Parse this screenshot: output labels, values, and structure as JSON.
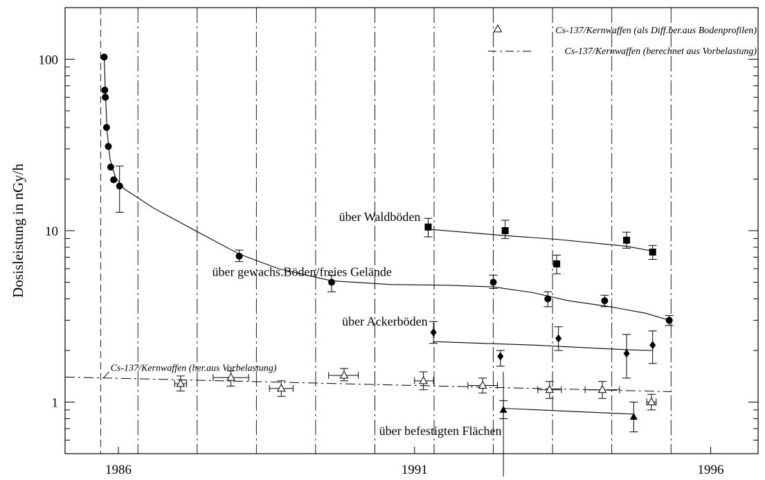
{
  "chart_data": {
    "type": "scatter",
    "title": "",
    "xlabel": "",
    "ylabel": "Dosisleistung in nGy/h",
    "yscale": "log",
    "xlim": [
      1985.1,
      1996.8
    ],
    "ylim": [
      0.5,
      200
    ],
    "x_ticks": [
      {
        "value": 1986,
        "label": "1986"
      },
      {
        "value": 1991,
        "label": "1991"
      },
      {
        "value": 1996,
        "label": "1996"
      }
    ],
    "y_ticks": [
      {
        "value": 1,
        "label": "1"
      },
      {
        "value": 10,
        "label": "10"
      },
      {
        "value": 100,
        "label": "100"
      }
    ],
    "y_minor_ticks": [
      0.6,
      0.7,
      0.8,
      0.9,
      2,
      3,
      4,
      5,
      6,
      7,
      8,
      9,
      20,
      30,
      40,
      50,
      60,
      70,
      80,
      90,
      200
    ],
    "year_boundaries": [
      1986.33,
      1987.33,
      1988.33,
      1989.33,
      1990.33,
      1991.33,
      1992.33,
      1993.33,
      1994.33,
      1995.33
    ],
    "chernobyl_marker_x": 1985.7,
    "grid": false,
    "legend": {
      "placement": "top-right",
      "entries": [
        {
          "label": "Cs-137/Kernwaffen (als Diff.ber.aus Bodenprofilen)",
          "marker": "triangle-open"
        },
        {
          "label": "Cs-137/Kernwaffen (berechnet aus Vorbelastung)",
          "marker": "dash-dot-line"
        }
      ]
    },
    "reference_line": {
      "label": "Cs-137/Kernwaffen (ber.aus Vorbelastung)",
      "style": "dash-dot",
      "x": [
        1985.1,
        1995.33
      ],
      "y": [
        1.4,
        1.15
      ]
    },
    "series": [
      {
        "name": "über gewachs.Böden/freies Gelände",
        "marker": "circle",
        "points": [
          {
            "x": 1985.76,
            "y": 103
          },
          {
            "x": 1985.77,
            "y": 66
          },
          {
            "x": 1985.78,
            "y": 60
          },
          {
            "x": 1985.8,
            "y": 40
          },
          {
            "x": 1985.83,
            "y": 31
          },
          {
            "x": 1985.87,
            "y": 23.5
          },
          {
            "x": 1985.92,
            "y": 19.8
          },
          {
            "x": 1986.02,
            "y": 18.2,
            "err": [
              12.8,
              23.8
            ]
          },
          {
            "x": 1988.04,
            "y": 7.1,
            "err": [
              6.6,
              7.7
            ]
          },
          {
            "x": 1989.6,
            "y": 5.0,
            "err": [
              4.4,
              5.5
            ]
          },
          {
            "x": 1992.33,
            "y": 5.0,
            "err": [
              4.6,
              5.5
            ]
          },
          {
            "x": 1993.25,
            "y": 4.0,
            "err": [
              3.6,
              4.4
            ]
          },
          {
            "x": 1994.21,
            "y": 3.9,
            "err": [
              3.6,
              4.2
            ]
          },
          {
            "x": 1995.3,
            "y": 3.0,
            "err": [
              2.8,
              3.2
            ]
          }
        ],
        "fit": [
          [
            1985.76,
            103
          ],
          [
            1985.78,
            64
          ],
          [
            1985.81,
            38
          ],
          [
            1985.86,
            26
          ],
          [
            1985.95,
            20.5
          ],
          [
            1986.1,
            17.5
          ],
          [
            1986.6,
            13.5
          ],
          [
            1987.3,
            10.0
          ],
          [
            1988.04,
            7.3
          ],
          [
            1988.7,
            6.0
          ],
          [
            1989.6,
            5.1
          ],
          [
            1990.6,
            4.85
          ],
          [
            1991.6,
            4.8
          ],
          [
            1992.33,
            4.7
          ],
          [
            1993.0,
            4.35
          ],
          [
            1993.6,
            3.9
          ],
          [
            1994.3,
            3.6
          ],
          [
            1994.9,
            3.3
          ],
          [
            1995.3,
            3.0
          ]
        ]
      },
      {
        "name": "über Waldböden",
        "marker": "square",
        "points": [
          {
            "x": 1991.23,
            "y": 10.5,
            "err": [
              9.2,
              11.8
            ]
          },
          {
            "x": 1992.53,
            "y": 10.0,
            "err": [
              9.0,
              11.5
            ]
          },
          {
            "x": 1993.4,
            "y": 6.4,
            "err": [
              5.6,
              7.2
            ]
          },
          {
            "x": 1994.58,
            "y": 8.8,
            "err": [
              7.9,
              9.8
            ]
          },
          {
            "x": 1995.02,
            "y": 7.5,
            "err": [
              6.8,
              8.2
            ]
          }
        ],
        "fit": [
          [
            1991.23,
            10.2
          ],
          [
            1992.53,
            9.35
          ],
          [
            1993.4,
            8.9
          ],
          [
            1994.58,
            8.1
          ],
          [
            1995.02,
            7.6
          ]
        ]
      },
      {
        "name": "über Ackerböden",
        "marker": "diamond",
        "points": [
          {
            "x": 1991.32,
            "y": 2.55,
            "err": [
              2.2,
              2.95
            ]
          },
          {
            "x": 1992.45,
            "y": 1.85,
            "err": [
              1.62,
              2.0
            ]
          },
          {
            "x": 1993.43,
            "y": 2.35,
            "err": [
              2.0,
              2.75
            ]
          },
          {
            "x": 1994.58,
            "y": 1.92,
            "err": [
              1.38,
              2.48
            ]
          },
          {
            "x": 1995.02,
            "y": 2.15,
            "err": [
              1.68,
              2.6
            ]
          }
        ],
        "fit": [
          [
            1991.32,
            2.25
          ],
          [
            1993.0,
            2.15
          ],
          [
            1994.58,
            2.02
          ],
          [
            1995.02,
            2.0
          ]
        ]
      },
      {
        "name": "über befestigten Flächen",
        "marker": "triangle",
        "points": [
          {
            "x": 1992.5,
            "y": 0.9,
            "err": [
              0.8,
              1.02
            ]
          },
          {
            "x": 1994.7,
            "y": 0.82,
            "err": [
              0.67,
              1.0
            ]
          }
        ],
        "fit": [
          [
            1992.5,
            0.92
          ],
          [
            1994.7,
            0.85
          ]
        ]
      },
      {
        "name": "Cs-137/Kernwaffen (als Diff.ber.aus Bodenprofilen)",
        "marker": "triangle-open",
        "points": [
          {
            "x": 1987.05,
            "y": 1.28,
            "err": [
              1.16,
              1.42
            ],
            "xerr": [
              1986.95,
              1987.15
            ]
          },
          {
            "x": 1987.9,
            "y": 1.39,
            "err": [
              1.24,
              1.52
            ],
            "xerr": [
              1987.6,
              1988.2
            ]
          },
          {
            "x": 1988.75,
            "y": 1.2,
            "err": [
              1.08,
              1.33
            ],
            "xerr": [
              1988.55,
              1988.95
            ]
          },
          {
            "x": 1989.81,
            "y": 1.43,
            "err": [
              1.33,
              1.57
            ],
            "xerr": [
              1989.55,
              1990.05
            ]
          },
          {
            "x": 1991.15,
            "y": 1.33,
            "err": [
              1.18,
              1.5
            ],
            "xerr": [
              1991.0,
              1991.32
            ]
          },
          {
            "x": 1992.15,
            "y": 1.25,
            "err": [
              1.13,
              1.38
            ],
            "xerr": [
              1991.9,
              1992.4
            ]
          },
          {
            "x": 1993.28,
            "y": 1.18,
            "err": [
              1.05,
              1.32
            ],
            "xerr": [
              1993.08,
              1993.48
            ]
          },
          {
            "x": 1994.17,
            "y": 1.18,
            "err": [
              1.05,
              1.32
            ],
            "xerr": [
              1993.88,
              1994.46
            ]
          },
          {
            "x": 1995.0,
            "y": 1.0,
            "err": [
              0.9,
              1.11
            ],
            "xerr": [
              1994.92,
              1995.08
            ]
          }
        ]
      }
    ],
    "annotations": [
      {
        "text": "über Waldböden",
        "anchor_series": 1
      },
      {
        "text": "über gewachs.Böden/freies Gelände",
        "anchor_series": 0
      },
      {
        "text": "über Ackerböden",
        "anchor_series": 2
      },
      {
        "text": "über befestigten Flächen",
        "anchor_series": 3
      }
    ]
  }
}
